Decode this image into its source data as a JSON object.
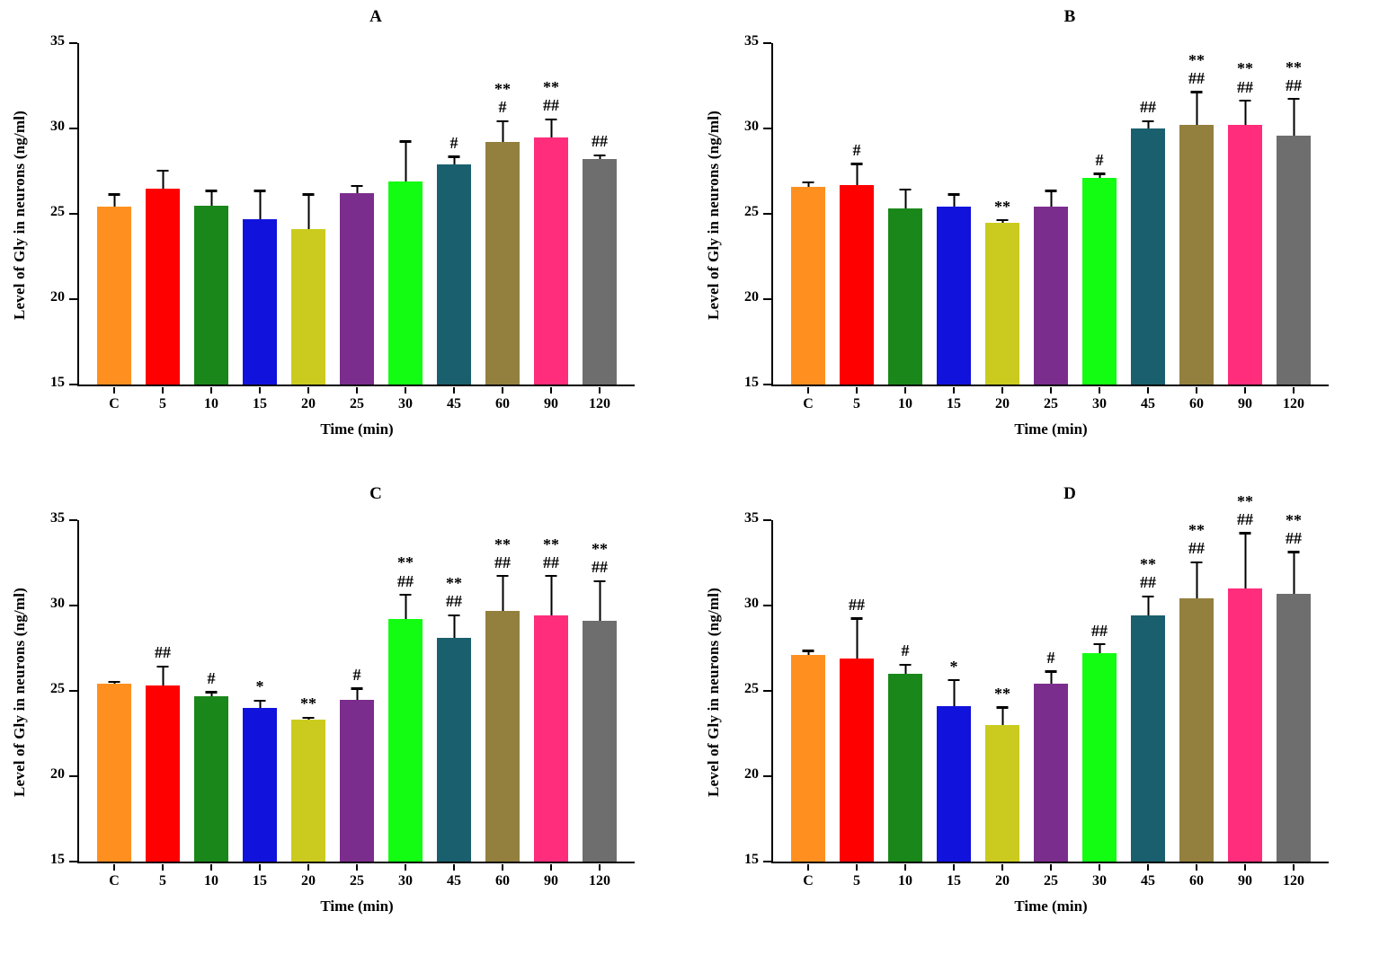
{
  "figure": {
    "background": "#ffffff",
    "text_color": "#000000"
  },
  "bar_colors": [
    "#FF9020",
    "#FF0000",
    "#1A871A",
    "#1212DD",
    "#CBCB1F",
    "#7B2D8E",
    "#12FD12",
    "#1A5F6E",
    "#93803E",
    "#FF2D7C",
    "#6E6E6E"
  ],
  "chart_data": [
    {
      "type": "bar",
      "title": "A",
      "xlabel": "Time (min)",
      "ylabel": "Level of Gly in neurons (ng/ml)",
      "ylim": [
        15,
        35
      ],
      "yticks": [
        15,
        20,
        25,
        30,
        35
      ],
      "categories": [
        "C",
        "5",
        "10",
        "15",
        "20",
        "25",
        "30",
        "45",
        "60",
        "90",
        "120"
      ],
      "values": [
        25.4,
        26.5,
        25.5,
        24.7,
        24.1,
        26.2,
        26.9,
        27.9,
        29.2,
        29.5,
        28.2
      ],
      "errors": [
        0.8,
        1.1,
        0.9,
        1.7,
        2.1,
        0.5,
        2.4,
        0.5,
        1.3,
        1.1,
        0.3
      ],
      "annotations": [
        [],
        [],
        [],
        [],
        [],
        [],
        [],
        [
          "#"
        ],
        [
          "**",
          "#"
        ],
        [
          "**",
          "##"
        ],
        [
          "##"
        ]
      ],
      "grid": false,
      "legend": "none"
    },
    {
      "type": "bar",
      "title": "B",
      "xlabel": "Time (min)",
      "ylabel": "Level of Gly in neurons (ng/ml)",
      "ylim": [
        15,
        35
      ],
      "yticks": [
        15,
        20,
        25,
        30,
        35
      ],
      "categories": [
        "C",
        "5",
        "10",
        "15",
        "20",
        "25",
        "30",
        "45",
        "60",
        "90",
        "120"
      ],
      "values": [
        26.6,
        26.7,
        25.3,
        25.4,
        24.5,
        25.4,
        27.1,
        30.0,
        30.2,
        30.2,
        29.6
      ],
      "errors": [
        0.3,
        1.3,
        1.2,
        0.8,
        0.2,
        1.0,
        0.3,
        0.5,
        2.0,
        1.5,
        2.2
      ],
      "annotations": [
        [],
        [
          "#"
        ],
        [],
        [],
        [
          "**"
        ],
        [],
        [
          "#"
        ],
        [
          "##"
        ],
        [
          "**",
          "##"
        ],
        [
          "**",
          "##"
        ],
        [
          "**",
          "##"
        ]
      ],
      "grid": false,
      "legend": "none"
    },
    {
      "type": "bar",
      "title": "C",
      "xlabel": "Time (min)",
      "ylabel": "Level of Gly in neurons (ng/ml)",
      "ylim": [
        15,
        35
      ],
      "yticks": [
        15,
        20,
        25,
        30,
        35
      ],
      "categories": [
        "C",
        "5",
        "10",
        "15",
        "20",
        "25",
        "30",
        "45",
        "60",
        "90",
        "120"
      ],
      "values": [
        25.4,
        25.3,
        24.7,
        24.0,
        23.3,
        24.5,
        29.2,
        28.1,
        29.7,
        29.4,
        29.1
      ],
      "errors": [
        0.2,
        1.2,
        0.3,
        0.5,
        0.2,
        0.7,
        1.5,
        1.4,
        2.1,
        2.4,
        2.4
      ],
      "annotations": [
        [],
        [
          "##"
        ],
        [
          "#"
        ],
        [
          "*"
        ],
        [
          "**"
        ],
        [
          "#"
        ],
        [
          "**",
          "##"
        ],
        [
          "**",
          "##"
        ],
        [
          "**",
          "##"
        ],
        [
          "**",
          "##"
        ],
        [
          "**",
          "##"
        ]
      ],
      "grid": false,
      "legend": "none"
    },
    {
      "type": "bar",
      "title": "D",
      "xlabel": "Time (min)",
      "ylabel": "Level of Gly in neurons (ng/ml)",
      "ylim": [
        15,
        35
      ],
      "yticks": [
        15,
        20,
        25,
        30,
        35
      ],
      "categories": [
        "C",
        "5",
        "10",
        "15",
        "20",
        "25",
        "30",
        "45",
        "60",
        "90",
        "120"
      ],
      "values": [
        27.1,
        26.9,
        26.0,
        24.1,
        23.0,
        25.4,
        27.2,
        29.4,
        30.4,
        31.0,
        30.7
      ],
      "errors": [
        0.3,
        2.4,
        0.6,
        1.6,
        1.1,
        0.8,
        0.6,
        1.2,
        2.2,
        3.3,
        2.5
      ],
      "annotations": [
        [],
        [
          "##"
        ],
        [
          "#"
        ],
        [
          "*"
        ],
        [
          "**"
        ],
        [
          "#"
        ],
        [
          "##"
        ],
        [
          "**",
          "##"
        ],
        [
          "**",
          "##"
        ],
        [
          "**",
          "##"
        ],
        [
          "**",
          "##"
        ]
      ],
      "grid": false,
      "legend": "none"
    }
  ]
}
